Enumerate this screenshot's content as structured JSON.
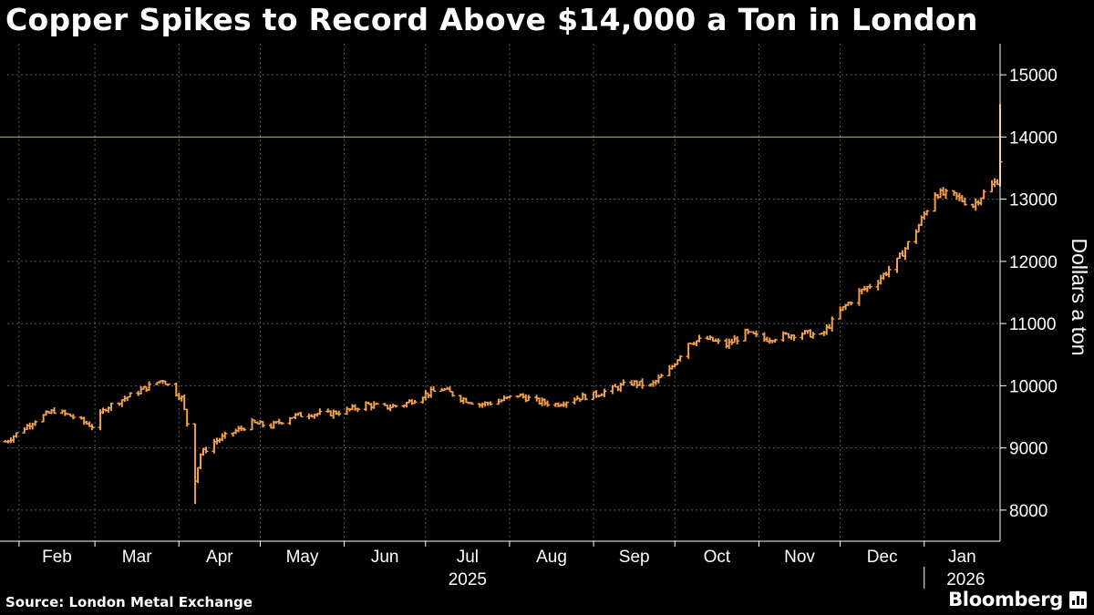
{
  "title": "Copper Spikes to Record Above $14,000 a Ton in London",
  "source": "Source: London Metal Exchange",
  "brand": "Bloomberg",
  "brand_icon": "bloomberg-terminal-icon",
  "colors": {
    "background": "#000000",
    "bars": "#f3a04d",
    "reference_line": "#8fc27a",
    "grid": "#5a5a5a"
  },
  "chart_data": {
    "type": "ohlc-bar",
    "title": "Copper Spikes to Record Above $14,000 a Ton in London",
    "ylabel": "Dollars a ton",
    "xlabel": "",
    "ylim": [
      7500,
      15500
    ],
    "yticks": [
      8000,
      9000,
      10000,
      11000,
      12000,
      13000,
      14000,
      15000
    ],
    "y_axis_position": "right",
    "grid": true,
    "reference_line": 14000,
    "months": [
      "Feb",
      "Mar",
      "Apr",
      "May",
      "Jun",
      "Jul",
      "Aug",
      "Sep",
      "Oct",
      "Nov",
      "Dec",
      "Jan"
    ],
    "years": [
      {
        "label": "2025",
        "month": "Jul"
      },
      {
        "label": "2026",
        "month": "Jan"
      }
    ],
    "period": {
      "start": "2025-01-27",
      "end": "2026-01-29"
    },
    "anchors": [
      [
        "2025-01-27",
        9100
      ],
      [
        "2025-02-07",
        9450
      ],
      [
        "2025-02-14",
        9600
      ],
      [
        "2025-02-21",
        9500
      ],
      [
        "2025-02-28",
        9350
      ],
      [
        "2025-03-05",
        9650
      ],
      [
        "2025-03-12",
        9800
      ],
      [
        "2025-03-19",
        9950
      ],
      [
        "2025-03-26",
        10100
      ],
      [
        "2025-04-02",
        9800
      ],
      [
        "2025-04-04",
        9400
      ],
      [
        "2025-04-07",
        8500
      ],
      [
        "2025-04-09",
        8900
      ],
      [
        "2025-04-14",
        9100
      ],
      [
        "2025-04-21",
        9250
      ],
      [
        "2025-04-28",
        9400
      ],
      [
        "2025-05-05",
        9350
      ],
      [
        "2025-05-12",
        9500
      ],
      [
        "2025-05-19",
        9550
      ],
      [
        "2025-05-26",
        9550
      ],
      [
        "2025-06-02",
        9600
      ],
      [
        "2025-06-09",
        9700
      ],
      [
        "2025-06-16",
        9650
      ],
      [
        "2025-06-23",
        9700
      ],
      [
        "2025-06-30",
        9850
      ],
      [
        "2025-07-07",
        9950
      ],
      [
        "2025-07-14",
        9800
      ],
      [
        "2025-07-21",
        9700
      ],
      [
        "2025-07-28",
        9750
      ],
      [
        "2025-08-04",
        9850
      ],
      [
        "2025-08-11",
        9750
      ],
      [
        "2025-08-18",
        9700
      ],
      [
        "2025-08-25",
        9800
      ],
      [
        "2025-09-01",
        9850
      ],
      [
        "2025-09-08",
        9950
      ],
      [
        "2025-09-15",
        10050
      ],
      [
        "2025-09-22",
        10000
      ],
      [
        "2025-09-29",
        10250
      ],
      [
        "2025-10-06",
        10700
      ],
      [
        "2025-10-13",
        10750
      ],
      [
        "2025-10-20",
        10650
      ],
      [
        "2025-10-27",
        10850
      ],
      [
        "2025-11-03",
        10750
      ],
      [
        "2025-11-10",
        10800
      ],
      [
        "2025-11-17",
        10850
      ],
      [
        "2025-11-24",
        10800
      ],
      [
        "2025-12-01",
        11200
      ],
      [
        "2025-12-08",
        11500
      ],
      [
        "2025-12-15",
        11700
      ],
      [
        "2025-12-22",
        12000
      ],
      [
        "2025-12-29",
        12500
      ],
      [
        "2026-01-05",
        13100
      ],
      [
        "2026-01-12",
        13050
      ],
      [
        "2026-01-19",
        12900
      ],
      [
        "2026-01-23",
        13100
      ],
      [
        "2026-01-28",
        13300
      ],
      [
        "2026-01-29",
        13600
      ]
    ],
    "final_bar": {
      "date": "2026-01-29",
      "low": 13200,
      "high": 14527,
      "close": 13600
    },
    "record_high": 14527,
    "trough": {
      "date": "2025-04-07",
      "value": 8100
    }
  }
}
